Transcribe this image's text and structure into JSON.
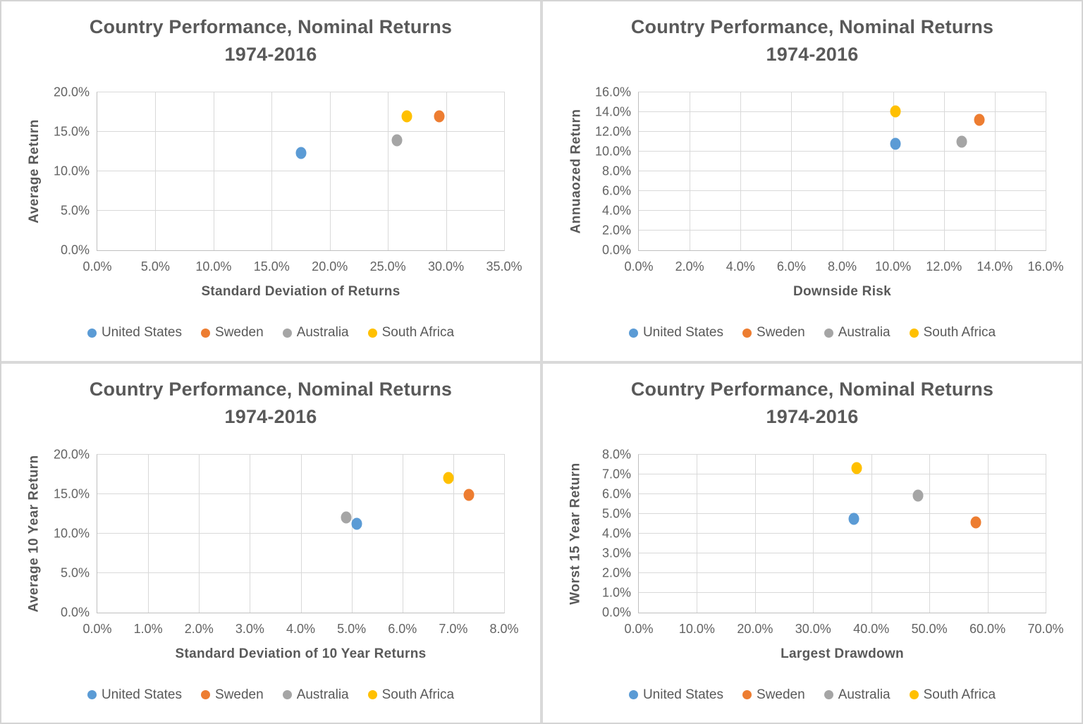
{
  "colors": {
    "united_states": "#5B9BD5",
    "sweden": "#ED7D31",
    "australia": "#A5A5A5",
    "south_africa": "#FFC000",
    "title_text": "#595959",
    "tick_text": "#636363",
    "gridline": "#D9D9D9",
    "axis_line": "#BFBFBF",
    "panel_divider": "#D9D9D9"
  },
  "legend_labels": [
    "United States",
    "Sweden",
    "Australia",
    "South Africa"
  ],
  "chart_data": [
    {
      "type": "scatter",
      "title": "Country Performance, Nominal Returns",
      "subtitle": "1974-2016",
      "xlabel": "Standard Deviation of Returns",
      "ylabel": "Average Return",
      "xlim": [
        0,
        35
      ],
      "xstep": 5,
      "ylim": [
        0,
        20
      ],
      "ystep": 5,
      "x_ticks": [
        "0.0%",
        "5.0%",
        "10.0%",
        "15.0%",
        "20.0%",
        "25.0%",
        "30.0%",
        "35.0%"
      ],
      "y_ticks": [
        "0.0%",
        "5.0%",
        "10.0%",
        "15.0%",
        "20.0%"
      ],
      "grid": true,
      "legend_position": "bottom",
      "series": [
        {
          "name": "United States",
          "color_key": "united_states",
          "points": [
            [
              17.5,
              12.3
            ]
          ]
        },
        {
          "name": "Sweden",
          "color_key": "sweden",
          "points": [
            [
              29.4,
              17.0
            ]
          ]
        },
        {
          "name": "Australia",
          "color_key": "australia",
          "points": [
            [
              25.8,
              13.9
            ]
          ]
        },
        {
          "name": "South Africa",
          "color_key": "south_africa",
          "points": [
            [
              26.6,
              17.0
            ]
          ]
        }
      ]
    },
    {
      "type": "scatter",
      "title": "Country Performance, Nominal Returns",
      "subtitle": "1974-2016",
      "xlabel": "Downside Risk",
      "ylabel": "Annuaozed Return",
      "xlim": [
        0,
        16
      ],
      "xstep": 2,
      "ylim": [
        0,
        16
      ],
      "ystep": 2,
      "x_ticks": [
        "0.0%",
        "2.0%",
        "4.0%",
        "6.0%",
        "8.0%",
        "10.0%",
        "12.0%",
        "14.0%",
        "16.0%"
      ],
      "y_ticks": [
        "0.0%",
        "2.0%",
        "4.0%",
        "6.0%",
        "8.0%",
        "10.0%",
        "12.0%",
        "14.0%",
        "16.0%"
      ],
      "grid": true,
      "legend_position": "bottom",
      "series": [
        {
          "name": "United States",
          "color_key": "united_states",
          "points": [
            [
              10.1,
              10.8
            ]
          ]
        },
        {
          "name": "Sweden",
          "color_key": "sweden",
          "points": [
            [
              13.4,
              13.2
            ]
          ]
        },
        {
          "name": "Australia",
          "color_key": "australia",
          "points": [
            [
              12.7,
              11.0
            ]
          ]
        },
        {
          "name": "South Africa",
          "color_key": "south_africa",
          "points": [
            [
              10.1,
              14.1
            ]
          ]
        }
      ]
    },
    {
      "type": "scatter",
      "title": "Country Performance, Nominal Returns",
      "subtitle": "1974-2016",
      "xlabel": "Standard Deviation of 10 Year Returns",
      "ylabel": "Average 10 Year Return",
      "xlim": [
        0,
        8
      ],
      "xstep": 1,
      "ylim": [
        0,
        20
      ],
      "ystep": 5,
      "x_ticks": [
        "0.0%",
        "1.0%",
        "2.0%",
        "3.0%",
        "4.0%",
        "5.0%",
        "6.0%",
        "7.0%",
        "8.0%"
      ],
      "y_ticks": [
        "0.0%",
        "5.0%",
        "10.0%",
        "15.0%",
        "20.0%"
      ],
      "grid": true,
      "legend_position": "bottom",
      "series": [
        {
          "name": "United States",
          "color_key": "united_states",
          "points": [
            [
              5.1,
              11.2
            ]
          ]
        },
        {
          "name": "Sweden",
          "color_key": "sweden",
          "points": [
            [
              7.3,
              14.9
            ]
          ]
        },
        {
          "name": "Australia",
          "color_key": "australia",
          "points": [
            [
              4.9,
              12.0
            ]
          ]
        },
        {
          "name": "South Africa",
          "color_key": "south_africa",
          "points": [
            [
              6.9,
              17.0
            ]
          ]
        }
      ]
    },
    {
      "type": "scatter",
      "title": "Country Performance, Nominal Returns",
      "subtitle": "1974-2016",
      "xlabel": "Largest Drawdown",
      "ylabel": "Worst 15 Year Return",
      "xlim": [
        0,
        70
      ],
      "xstep": 10,
      "ylim": [
        0,
        8
      ],
      "ystep": 1,
      "x_ticks": [
        "0.0%",
        "10.0%",
        "20.0%",
        "30.0%",
        "40.0%",
        "50.0%",
        "60.0%",
        "70.0%"
      ],
      "y_ticks": [
        "0.0%",
        "1.0%",
        "2.0%",
        "3.0%",
        "4.0%",
        "5.0%",
        "6.0%",
        "7.0%",
        "8.0%"
      ],
      "grid": true,
      "legend_position": "bottom",
      "series": [
        {
          "name": "United States",
          "color_key": "united_states",
          "points": [
            [
              37.0,
              4.75
            ]
          ]
        },
        {
          "name": "Sweden",
          "color_key": "sweden",
          "points": [
            [
              58.0,
              4.55
            ]
          ]
        },
        {
          "name": "Australia",
          "color_key": "australia",
          "points": [
            [
              48.0,
              5.9
            ]
          ]
        },
        {
          "name": "South Africa",
          "color_key": "south_africa",
          "points": [
            [
              37.5,
              7.3
            ]
          ]
        }
      ]
    }
  ]
}
